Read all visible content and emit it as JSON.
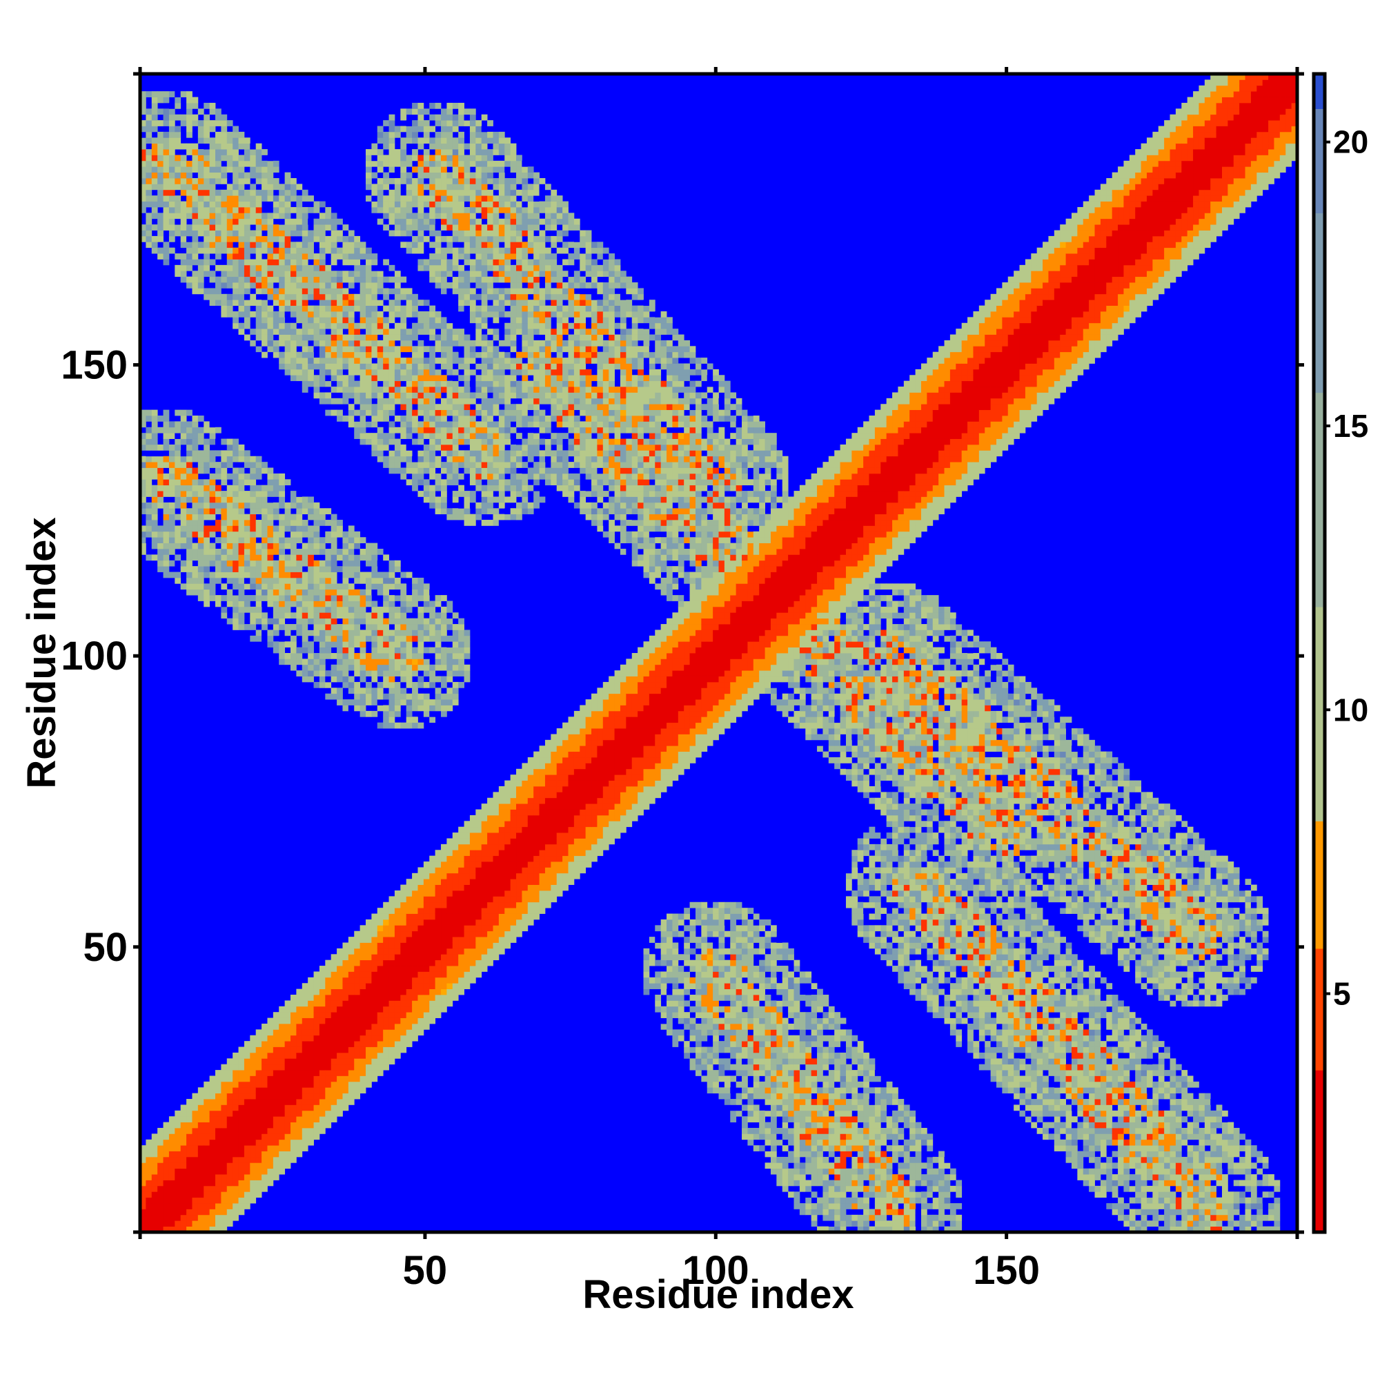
{
  "chart_data": {
    "type": "heatmap",
    "title": "",
    "xlabel": "Residue index",
    "ylabel": "Residue index",
    "n_residues": 200,
    "xlim": [
      1,
      200
    ],
    "ylim": [
      1,
      200
    ],
    "x_ticks": [
      50,
      100,
      150
    ],
    "y_ticks": [
      50,
      100,
      150
    ],
    "x_tick_labels": [
      "50",
      "100",
      "150"
    ],
    "y_tick_labels": [
      "50",
      "100",
      "150"
    ],
    "colorbar": {
      "range": [
        0.8,
        21.2
      ],
      "ticks": [
        5,
        10,
        15,
        20
      ],
      "tick_labels": [
        "5",
        "10",
        "15",
        "20"
      ],
      "cutoff": 8,
      "background_value": 21
    },
    "colormap": [
      {
        "value": 0.8,
        "color": "#e60000"
      },
      {
        "value": 3.5,
        "color": "#ff3300"
      },
      {
        "value": 6.0,
        "color": "#ff8c00"
      },
      {
        "value": 8.0,
        "color": "#ffaa00"
      },
      {
        "value": 8.01,
        "color": "#b6c98a"
      },
      {
        "value": 12.0,
        "color": "#9db79a"
      },
      {
        "value": 16.0,
        "color": "#7f9fb0"
      },
      {
        "value": 20.0,
        "color": "#6a88b8"
      },
      {
        "value": 20.5,
        "color": "#0000ff"
      }
    ],
    "structure": {
      "diagonal": "residue distance increases with sequence separation; red along main diagonal",
      "contact_bands": [
        {
          "from": [
            5,
            185
          ],
          "to": [
            60,
            135
          ]
        },
        {
          "from": [
            52,
            183
          ],
          "to": [
            100,
            130
          ]
        },
        {
          "from": [
            5,
            130
          ],
          "to": [
            45,
            100
          ]
        },
        {
          "from": [
            70,
            150
          ],
          "to": [
            115,
            105
          ]
        },
        {
          "from": [
            100,
            90
          ],
          "to": [
            160,
            55
          ]
        },
        {
          "from": [
            110,
            40
          ],
          "to": [
            130,
            15
          ]
        },
        {
          "from": [
            130,
            95
          ],
          "to": [
            180,
            45
          ]
        },
        {
          "from": [
            140,
            60
          ],
          "to": [
            190,
            15
          ]
        }
      ]
    }
  }
}
